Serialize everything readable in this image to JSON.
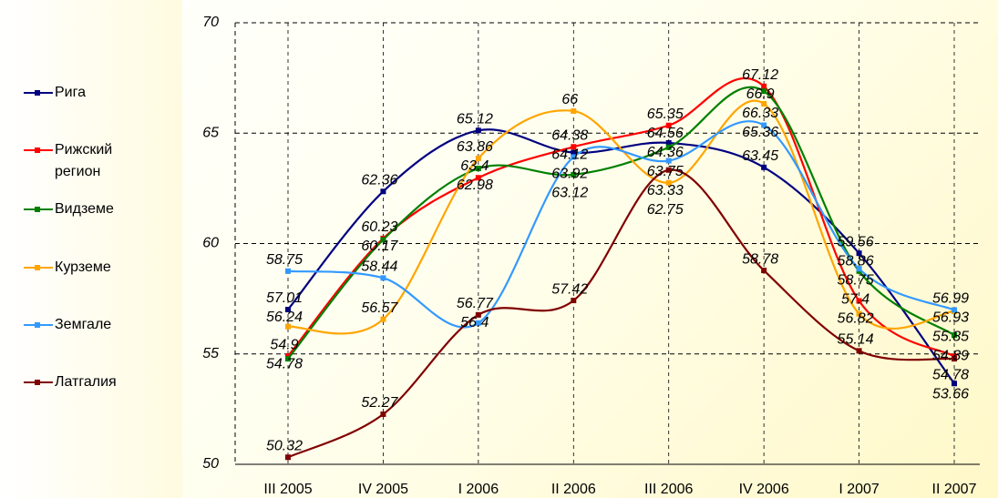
{
  "chart_data": {
    "type": "line",
    "categories": [
      "III 2005",
      "IV 2005",
      "I 2006",
      "II 2006",
      "III 2006",
      "IV 2006",
      "I 2007",
      "II 2007"
    ],
    "series": [
      {
        "name": "Рига",
        "color": "#000080",
        "values": [
          57.01,
          62.36,
          65.12,
          64.12,
          64.56,
          63.45,
          59.56,
          53.66
        ]
      },
      {
        "name": "Рижский регион",
        "color": "#ff0000",
        "values": [
          54.9,
          60.23,
          62.98,
          64.38,
          65.35,
          67.12,
          57.4,
          54.89
        ]
      },
      {
        "name": "Видземе",
        "color": "#008000",
        "values": [
          54.78,
          60.17,
          63.4,
          63.12,
          64.36,
          66.9,
          58.75,
          55.85
        ]
      },
      {
        "name": "Курземе",
        "color": "#ffa500",
        "values": [
          56.24,
          56.57,
          63.86,
          66.0,
          62.75,
          66.33,
          56.82,
          56.93
        ]
      },
      {
        "name": "Земгале",
        "color": "#3399ff",
        "values": [
          58.75,
          58.44,
          56.4,
          63.92,
          63.75,
          65.36,
          58.86,
          56.99
        ]
      },
      {
        "name": "Латгалия",
        "color": "#800000",
        "values": [
          50.32,
          52.27,
          56.77,
          57.42,
          63.33,
          58.78,
          55.14,
          54.78
        ]
      }
    ],
    "ylim": [
      50,
      70
    ],
    "yticks": [
      50,
      55,
      60,
      65,
      70
    ],
    "grid": true
  }
}
